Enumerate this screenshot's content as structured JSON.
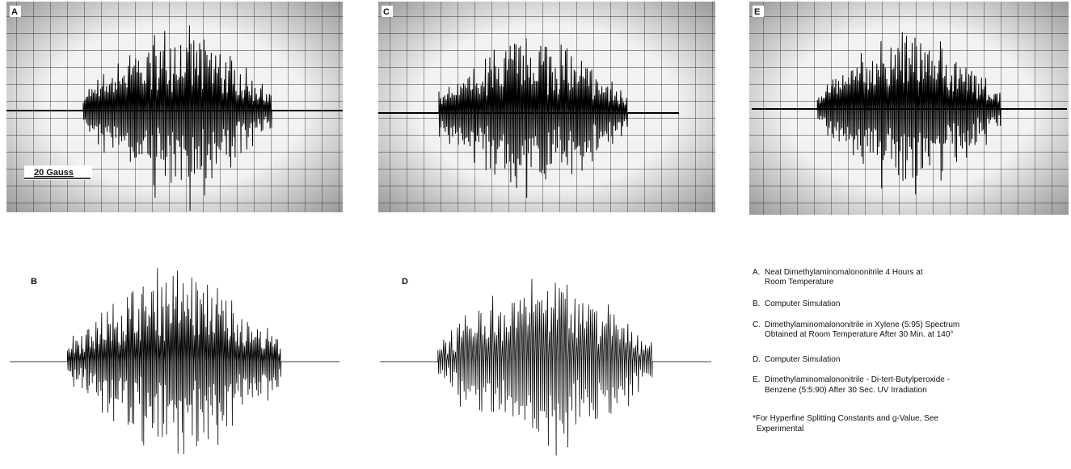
{
  "panels": [
    {
      "label": "A"
    },
    {
      "label": "B"
    },
    {
      "label": "C"
    },
    {
      "label": "D"
    },
    {
      "label": "E"
    }
  ],
  "scale_label": "20 Gauss",
  "legend": {
    "items": [
      {
        "letter": "A.",
        "lines": [
          "Neat Dimethylaminomalononitrile 4 Hours at",
          "Room Temperature"
        ]
      },
      {
        "letter": "B.",
        "lines": [
          "Computer Simulation"
        ]
      },
      {
        "letter": "C.",
        "lines": [
          "Dimethylaminomalononitrile in Xylene (5:95) Spectrum",
          "Obtained at Room Temperature After 30 Min. at 140°"
        ]
      },
      {
        "letter": "D.",
        "lines": [
          "Computer Simulation"
        ]
      },
      {
        "letter": "E.",
        "lines": [
          "Dimethylaminomalononitrile - Di-tert-Butylperoxide -",
          "Benzene (5:5:90) After 30 Sec. UV Irradiation"
        ]
      }
    ],
    "footnote": [
      "*For Hyperfine Splitting Constants and g-Value, See",
      "Experimental"
    ]
  }
}
